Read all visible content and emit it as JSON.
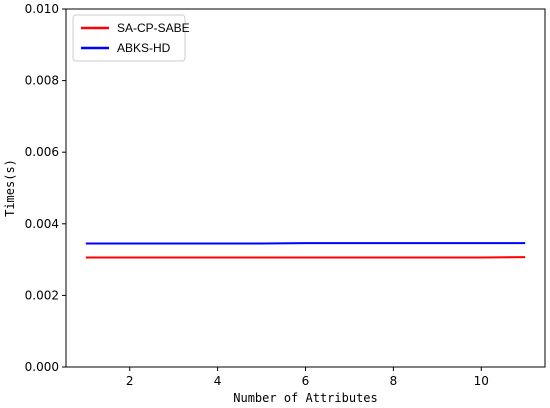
{
  "chart_data": {
    "type": "line",
    "xlabel": "Number of Attributes",
    "ylabel": "Times(s)",
    "xlim": [
      0.55,
      11.45
    ],
    "ylim": [
      0.0,
      0.01
    ],
    "xticks": [
      2,
      4,
      6,
      8,
      10
    ],
    "yticks": [
      0.0,
      0.002,
      0.004,
      0.006,
      0.008,
      0.01
    ],
    "ytick_labels": [
      "0.000",
      "0.002",
      "0.004",
      "0.006",
      "0.008",
      "0.010"
    ],
    "legend_position": "top-left",
    "grid": false,
    "series": [
      {
        "name": "SA-CP-SABE",
        "color": "#ff0000",
        "x": [
          1,
          2,
          3,
          4,
          5,
          6,
          7,
          8,
          9,
          10,
          11
        ],
        "y": [
          0.00306,
          0.00306,
          0.00306,
          0.00306,
          0.00306,
          0.00306,
          0.00306,
          0.00306,
          0.00306,
          0.00306,
          0.00307
        ]
      },
      {
        "name": "ABKS-HD",
        "color": "#0000ff",
        "x": [
          1,
          2,
          3,
          4,
          5,
          6,
          7,
          8,
          9,
          10,
          11
        ],
        "y": [
          0.00345,
          0.00345,
          0.00345,
          0.00345,
          0.00345,
          0.00346,
          0.00346,
          0.00346,
          0.00346,
          0.00346,
          0.00346
        ]
      }
    ]
  }
}
